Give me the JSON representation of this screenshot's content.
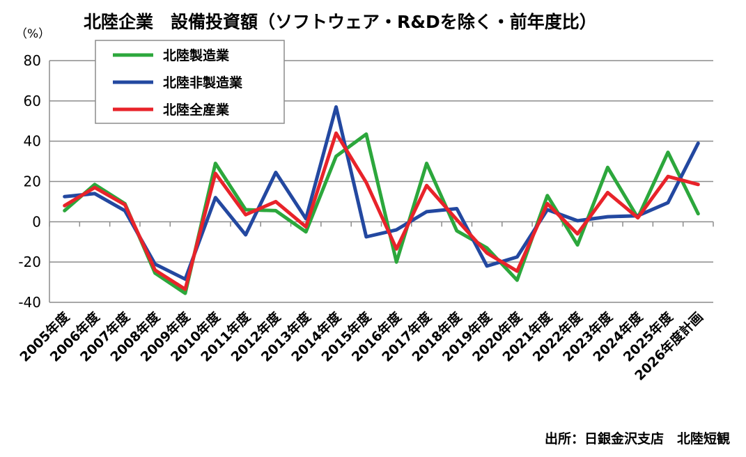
{
  "chart_data": {
    "type": "line",
    "title": "北陸企業　設備投資額（ソフトウェア・R&Dを除く・前年度比）",
    "unit": "（%）",
    "source": "出所：日銀金沢支店　北陸短観",
    "ylim": [
      -40,
      80
    ],
    "yticks": [
      -40,
      -20,
      0,
      20,
      40,
      60,
      80
    ],
    "grid": true,
    "legend_position": "top-left",
    "categories": [
      "2005年度",
      "2006年度",
      "2007年度",
      "2008年度",
      "2009年度",
      "2010年度",
      "2011年度",
      "2012年度",
      "2013年度",
      "2014年度",
      "2015年度",
      "2016年度",
      "2017年度",
      "2018年度",
      "2019年度",
      "2020年度",
      "2021年度",
      "2022年度",
      "2023年度",
      "2024年度",
      "2025年度",
      "2026年度計画"
    ],
    "series": [
      {
        "name": "北陸製造業",
        "color": "#2ca73c",
        "values": [
          5.5,
          18.5,
          9,
          -25.5,
          -35.5,
          29,
          6,
          5.5,
          -5,
          32.5,
          43.5,
          -20,
          29,
          -4.5,
          -13,
          -29,
          13,
          -11.5,
          27,
          2,
          34.5,
          4
        ]
      },
      {
        "name": "北陸非製造業",
        "color": "#2348a0",
        "values": [
          12.5,
          14,
          5.5,
          -21,
          -28.5,
          12,
          -6.5,
          24.5,
          1.5,
          57,
          -7.5,
          -4,
          5,
          6.5,
          -22,
          -17.5,
          6,
          0.5,
          2.5,
          3,
          9.5,
          39
        ]
      },
      {
        "name": "北陸全産業",
        "color": "#e8232a",
        "values": [
          8,
          17,
          8.5,
          -24,
          -33.5,
          24,
          3.5,
          10,
          -2.5,
          44,
          19.5,
          -13.5,
          18,
          1,
          -15.5,
          -24.5,
          9,
          -6,
          14.5,
          2,
          22.5,
          18.5
        ]
      }
    ]
  }
}
